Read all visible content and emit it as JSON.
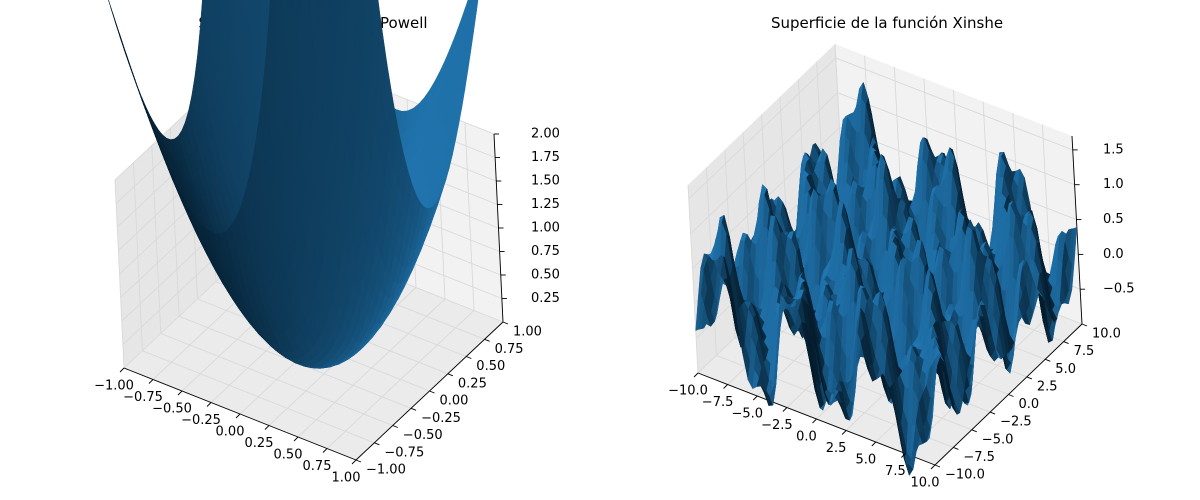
{
  "chart_data": [
    {
      "type": "surface",
      "title": "Superficie de la función Powell",
      "function": "powell",
      "xlim": [
        -1,
        1
      ],
      "ylim": [
        -1,
        1
      ],
      "zlim": [
        0,
        2
      ],
      "x_ticks": [
        "−1.00",
        "−0.75",
        "−0.50",
        "−0.25",
        "0.00",
        "0.25",
        "0.50",
        "0.75",
        "1.00"
      ],
      "y_ticks": [
        "−1.00",
        "−0.75",
        "−0.50",
        "−0.25",
        "0.00",
        "0.25",
        "0.50",
        "0.75",
        "1.00"
      ],
      "z_ticks": [
        "0.25",
        "0.50",
        "0.75",
        "1.00",
        "1.25",
        "1.50",
        "1.75",
        "2.00"
      ],
      "x_tick_values": [
        -1,
        -0.75,
        -0.5,
        -0.25,
        0,
        0.25,
        0.5,
        0.75,
        1
      ],
      "y_tick_values": [
        -1,
        -0.75,
        -0.5,
        -0.25,
        0,
        0.25,
        0.5,
        0.75,
        1
      ],
      "z_tick_values": [
        0.25,
        0.5,
        0.75,
        1,
        1.25,
        1.5,
        1.75,
        2
      ],
      "grid": true,
      "colors": {
        "surface": "#1f77b4",
        "pane": "#f2f2f2",
        "grid": "#d9d9d9"
      }
    },
    {
      "type": "surface",
      "title": "Superficie de la función Xinshe",
      "function": "xinshe",
      "xlim": [
        -10,
        10
      ],
      "ylim": [
        -10,
        10
      ],
      "zlim": [
        -1,
        1.7
      ],
      "x_ticks": [
        "−10.0",
        "−7.5",
        "−5.0",
        "−2.5",
        "0.0",
        "2.5",
        "5.0",
        "7.5",
        "10.0"
      ],
      "y_ticks": [
        "−10.0",
        "−7.5",
        "−5.0",
        "−2.5",
        "0.0",
        "2.5",
        "5.0",
        "7.5",
        "10.0"
      ],
      "z_ticks": [
        "−0.5",
        "0.0",
        "0.5",
        "1.0",
        "1.5"
      ],
      "x_tick_values": [
        -10,
        -7.5,
        -5,
        -2.5,
        0,
        2.5,
        5,
        7.5,
        10
      ],
      "y_tick_values": [
        -10,
        -7.5,
        -5,
        -2.5,
        0,
        2.5,
        5,
        7.5,
        10
      ],
      "z_tick_values": [
        -0.5,
        0,
        0.5,
        1,
        1.5
      ],
      "grid": true,
      "colors": {
        "surface": "#1f77b4",
        "pane": "#f2f2f2",
        "grid": "#d9d9d9"
      }
    }
  ]
}
